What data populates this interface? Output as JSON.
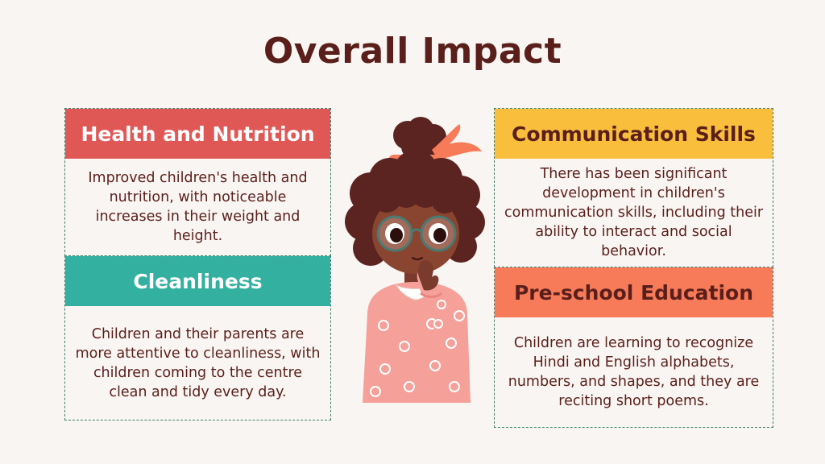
{
  "title": "Overall Impact",
  "colors": {
    "background": "#f9f5f2",
    "text": "#5a1f1b",
    "health_header": "#e05856",
    "cleanliness_header": "#33b09f",
    "communication_header": "#f8be3c",
    "preschool_header": "#f77b59",
    "border": "#3f7f6e"
  },
  "cards": {
    "health": {
      "heading": "Health and Nutrition",
      "text": "Improved children's health and nutrition, with noticeable increases in their weight and height."
    },
    "cleanliness": {
      "heading": "Cleanliness",
      "text": "Children and their parents are more attentive to cleanliness, with children coming to the centre clean and tidy every day."
    },
    "communication": {
      "heading": "Communication Skills",
      "text": "There has been significant development in children's communication skills, including their ability to interact and social behavior."
    },
    "preschool": {
      "heading": "Pre-school Education",
      "text": "Children are learning to recognize Hindi and English alphabets, numbers, and shapes, and they are reciting short poems."
    }
  },
  "illustration": {
    "icon": "thinking-girl-illustration"
  }
}
